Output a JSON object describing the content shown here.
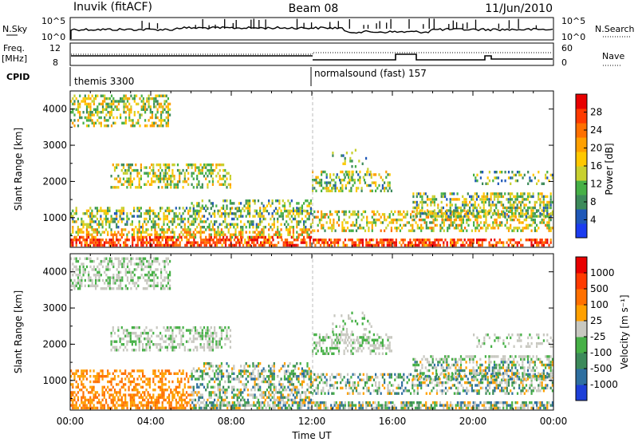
{
  "header": {
    "station": "Inuvik (fitACF)",
    "beam": "Beam 08",
    "date": "11/Jun/2010"
  },
  "panels": {
    "nsky": {
      "label": "N.Sky",
      "tick_top": "10^5",
      "tick_bottom": "10^0",
      "right_label": "N.Search",
      "right_tick_top": "10^5",
      "right_tick_bottom": "10^0"
    },
    "freq": {
      "label_line1": "Freq.",
      "label_line2": "[MHz]",
      "tick_top": "12",
      "tick_bottom": "8",
      "right_label": "Nave",
      "right_tick_top": "60",
      "right_tick_bottom": "0"
    },
    "cpid": {
      "label": "CPID",
      "modes": [
        {
          "name": "themis 3300",
          "start_hour": 0
        },
        {
          "name": "normalsound (fast) 157",
          "start_hour": 12
        }
      ]
    }
  },
  "chart_data": [
    {
      "type": "heatmap",
      "ylabel": "Slant Range [km]",
      "xlabel": "",
      "xlim_hours": [
        0,
        24
      ],
      "ylim": [
        180,
        4500
      ],
      "yticks": [
        1000,
        2000,
        3000,
        4000
      ],
      "colorbar": {
        "label": "Power [dB]",
        "range": [
          0,
          32
        ],
        "ticks": [
          "4",
          "8",
          "12",
          "16",
          "20",
          "24",
          "28"
        ],
        "colors": [
          "#1b3cf0",
          "#1f58b8",
          "#3c8a5a",
          "#46b046",
          "#c8d030",
          "#ffc800",
          "#ffa000",
          "#ff7000",
          "#ff3a00",
          "#e80000"
        ]
      }
    },
    {
      "type": "heatmap",
      "ylabel": "Slant Range [km]",
      "xlabel": "Time UT",
      "xlim_hours": [
        0,
        24
      ],
      "ylim": [
        180,
        4500
      ],
      "yticks": [
        1000,
        2000,
        3000,
        4000
      ],
      "xticks": [
        "00:00",
        "04:00",
        "08:00",
        "12:00",
        "16:00",
        "20:00",
        "00:00"
      ],
      "colorbar": {
        "label": "Velocity [m s⁻¹]",
        "ticks": [
          "1000",
          "500",
          "100",
          "25",
          "-25",
          "-100",
          "-500",
          "-1000"
        ],
        "colors": [
          "#1d3fd8",
          "#2e6fa0",
          "#3c8a5a",
          "#46b046",
          "#c8c8c0",
          "#ffa000",
          "#ff7000",
          "#ff3a00",
          "#e80000"
        ]
      }
    }
  ]
}
